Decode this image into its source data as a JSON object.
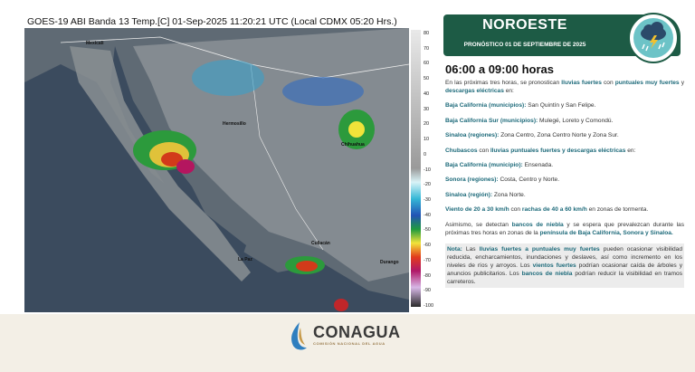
{
  "satellite": {
    "title": "GOES-19 ABI Banda 13 Temp.[C] 01-Sep-2025 11:20:21 UTC (Local CDMX  05:20 Hrs.)",
    "colorbar_ticks": [
      80,
      70,
      60,
      50,
      40,
      30,
      20,
      10,
      0,
      -10,
      -20,
      -30,
      -40,
      -50,
      -60,
      -70,
      -80,
      -90,
      -100
    ],
    "cities": [
      "Mexicali",
      "Hermosillo",
      "Chihuahua",
      "Culiacán",
      "La Paz",
      "Durango"
    ]
  },
  "header": {
    "region": "NOROESTE",
    "date": "PRONÓSTICO 01 DE SEPTIEMBRE DE 2025"
  },
  "hours": "06:00 a 09:00 horas",
  "paragraphs": [
    [
      {
        "t": "En las próximas tres horas, se pronostican "
      },
      {
        "t": "lluvias fuertes",
        "b": true
      },
      {
        "t": " con "
      },
      {
        "t": "puntuales muy fuertes",
        "b": true
      },
      {
        "t": " y "
      },
      {
        "t": "descargas eléctricas",
        "b": true
      },
      {
        "t": " en:"
      }
    ],
    [
      {
        "t": "Baja California (municipios):",
        "b": true
      },
      {
        "t": " San Quintín y San Felipe."
      }
    ],
    [
      {
        "t": "Baja California Sur (municipios):",
        "b": true
      },
      {
        "t": " Mulegé, Loreto y Comondú."
      }
    ],
    [
      {
        "t": "Sinaloa (regiones):",
        "b": true
      },
      {
        "t": " Zona Centro, Zona Centro Norte y Zona Sur."
      }
    ],
    [
      {
        "t": "Chubascos",
        "b": true
      },
      {
        "t": " con "
      },
      {
        "t": "lluvias puntuales fuertes y descargas eléctricas",
        "b": true
      },
      {
        "t": " en:"
      }
    ],
    [
      {
        "t": "Baja California (municipio):",
        "b": true
      },
      {
        "t": " Ensenada."
      }
    ],
    [
      {
        "t": "Sonora (regiones):",
        "b": true
      },
      {
        "t": " Costa, Centro y Norte."
      }
    ],
    [
      {
        "t": "Sinaloa (región):",
        "b": true
      },
      {
        "t": " Zona Norte."
      }
    ],
    [
      {
        "t": "Viento de 20 a 30 km/h",
        "b": true
      },
      {
        "t": " con "
      },
      {
        "t": "rachas de 40 a 60 km/h",
        "b": true
      },
      {
        "t": " en zonas de tormenta."
      }
    ],
    [
      {
        "t": "Asimismo, se detectan "
      },
      {
        "t": "bancos de  niebla",
        "b": true
      },
      {
        "t": " y se espera que prevalezcan durante las próximas tres horas en zonas de la "
      },
      {
        "t": "península de Baja California, Sonora y Sinaloa.",
        "b": true
      }
    ],
    [
      {
        "t": "Nota:",
        "b": true
      },
      {
        "t": " Las "
      },
      {
        "t": "lluvias fuertes a puntuales muy fuertes",
        "b": true
      },
      {
        "t": " pueden ocasionar visibilidad reducida, encharcamientos, inundaciones y deslaves, así como incremento en los niveles de ríos y arroyos. Los "
      },
      {
        "t": "vientos fuertes",
        "b": true
      },
      {
        "t": " podrían ocasionar caída de árboles y anuncios publicitarios. Los "
      },
      {
        "t": "bancos de niebla",
        "b": true
      },
      {
        "t": " podrían reducir la visibilidad en tramos carreteros."
      }
    ]
  ],
  "footer": {
    "brand": "CONAGUA",
    "subtitle": "COMISIÓN NACIONAL DEL AGUA"
  }
}
